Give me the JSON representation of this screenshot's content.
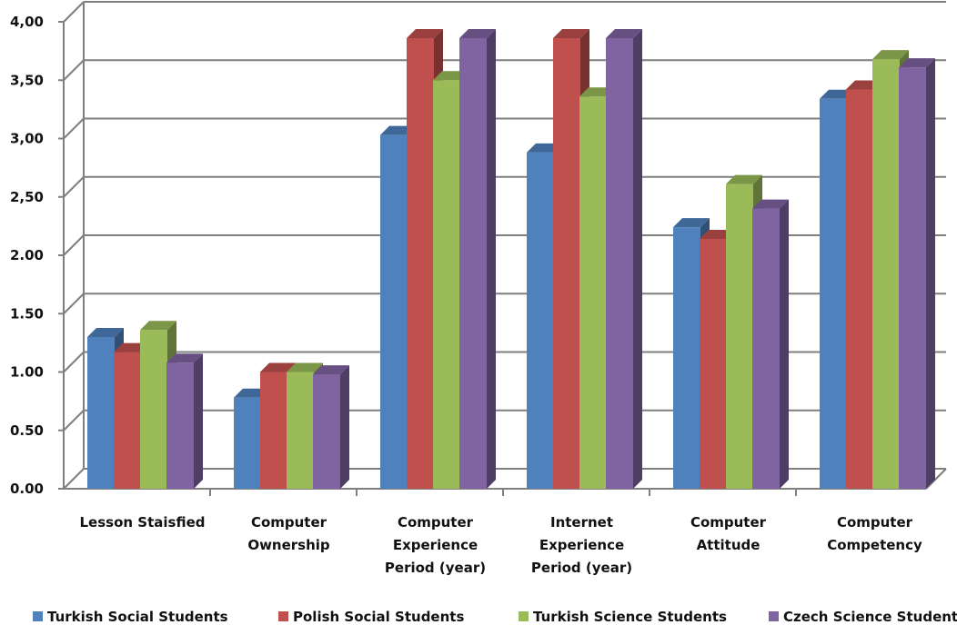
{
  "chart_data": {
    "type": "bar",
    "title": "",
    "xlabel": "",
    "ylabel": "",
    "ylim": [
      0,
      4
    ],
    "yticks": [
      "0.00",
      "0.50",
      "1.00",
      "1.50",
      "2.00",
      "2,50",
      "3,00",
      "3,50",
      "4,00"
    ],
    "grid": true,
    "legend_position": "bottom",
    "categories": [
      [
        "Lesson Staisfied"
      ],
      [
        "Computer",
        "Ownership"
      ],
      [
        "Computer",
        "Experience",
        "Period (year)"
      ],
      [
        "Internet",
        "Experience",
        "Period (year)"
      ],
      [
        "Computer",
        "Attitude"
      ],
      [
        "Computer",
        "Competency"
      ]
    ],
    "series": [
      {
        "name": "Turkish Social Students",
        "color": "#4F81BD",
        "values": [
          1.3,
          0.78,
          3.03,
          2.88,
          2.24,
          3.34
        ]
      },
      {
        "name": "Polish Social Students",
        "color": "#C0504D",
        "values": [
          1.17,
          1.0,
          3.86,
          3.86,
          2.14,
          3.42
        ]
      },
      {
        "name": "Turkish Science Students",
        "color": "#9BBB59",
        "values": [
          1.36,
          1.0,
          3.5,
          3.36,
          2.61,
          3.68
        ]
      },
      {
        "name": "Czech Science Students",
        "color": "#8064A2",
        "values": [
          1.08,
          0.98,
          3.86,
          3.86,
          2.4,
          3.61
        ]
      }
    ]
  }
}
